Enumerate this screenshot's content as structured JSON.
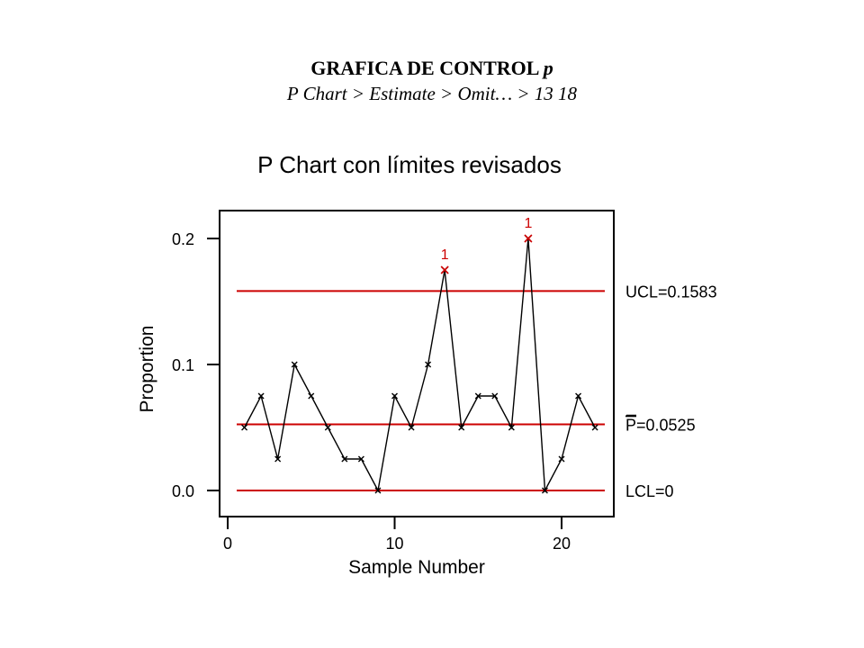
{
  "slide": {
    "title": "GRAFICA DE CONTROL",
    "title_var": "p",
    "subtitle": "P Chart > Estimate > Omit… > 13 18"
  },
  "chart_data": {
    "type": "line",
    "title": "P Chart con límites revisados",
    "xlabel": "Sample Number",
    "ylabel": "Proportion",
    "xlim": [
      0,
      23
    ],
    "ylim": [
      -0.015,
      0.22
    ],
    "xticks": [
      0,
      10,
      20
    ],
    "xtick_labels": [
      "0",
      "10",
      "20"
    ],
    "yticks": [
      0.0,
      0.1,
      0.2
    ],
    "ytick_labels": [
      "0.0",
      "0.1",
      "0.2"
    ],
    "x": [
      1,
      2,
      3,
      4,
      5,
      6,
      7,
      8,
      9,
      10,
      11,
      12,
      13,
      14,
      15,
      16,
      17,
      18,
      19,
      20,
      21,
      22
    ],
    "values": [
      0.05,
      0.075,
      0.025,
      0.1,
      0.075,
      0.05,
      0.025,
      0.025,
      0.0,
      0.075,
      0.05,
      0.1,
      0.175,
      0.05,
      0.075,
      0.075,
      0.05,
      0.2,
      0.0,
      0.025,
      0.075,
      0.05
    ],
    "control_lines": [
      {
        "name": "UCL",
        "value": 0.1583,
        "label": "UCL=0.1583"
      },
      {
        "name": "center",
        "value": 0.0525,
        "label_symbol": "P",
        "label_value": "=0.0525"
      },
      {
        "name": "LCL",
        "value": 0.0,
        "label": "LCL=0"
      }
    ],
    "flagged_points": [
      {
        "x": 13,
        "label": "1"
      },
      {
        "x": 18,
        "label": "1"
      }
    ],
    "grid": false,
    "colors": {
      "series": "#000000",
      "control_lines": "#cc0000",
      "flags": "#cc0000"
    }
  }
}
